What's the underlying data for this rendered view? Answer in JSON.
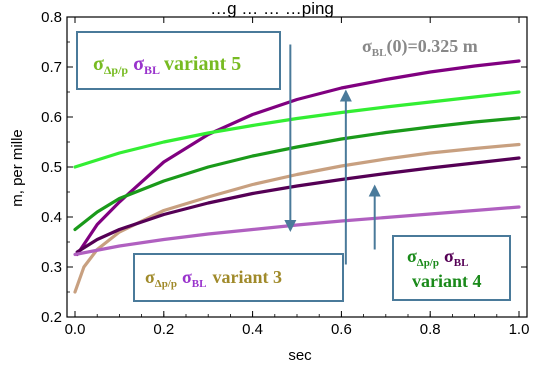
{
  "chart_data": {
    "type": "line",
    "title": "…g … … …ping",
    "xlabel": "sec",
    "ylabel": "m, per mille",
    "xlim": [
      0,
      1
    ],
    "ylim": [
      0.2,
      0.8
    ],
    "xticks": [
      "0.0",
      "0.2",
      "0.4",
      "0.6",
      "0.8",
      "1.0"
    ],
    "yticks": [
      "0.2",
      "0.3",
      "0.4",
      "0.5",
      "0.6",
      "0.7",
      "0.8"
    ],
    "grid": false,
    "series": [
      {
        "color": "#800080",
        "x": [
          0.005,
          0.05,
          0.1,
          0.2,
          0.3,
          0.4,
          0.5,
          0.6,
          0.7,
          0.8,
          0.9,
          1.0
        ],
        "y": [
          0.325,
          0.385,
          0.43,
          0.51,
          0.565,
          0.605,
          0.635,
          0.658,
          0.675,
          0.69,
          0.702,
          0.712
        ]
      },
      {
        "color": "#33ee33",
        "x": [
          0.0,
          0.1,
          0.2,
          0.3,
          0.4,
          0.5,
          0.6,
          0.7,
          0.8,
          0.9,
          1.0
        ],
        "y": [
          0.5,
          0.528,
          0.55,
          0.568,
          0.583,
          0.597,
          0.609,
          0.62,
          0.63,
          0.64,
          0.65
        ]
      },
      {
        "color": "#1a9a1a",
        "x": [
          0.0,
          0.05,
          0.1,
          0.2,
          0.3,
          0.4,
          0.5,
          0.6,
          0.7,
          0.8,
          0.9,
          1.0
        ],
        "y": [
          0.375,
          0.41,
          0.437,
          0.472,
          0.5,
          0.522,
          0.54,
          0.556,
          0.569,
          0.58,
          0.59,
          0.598
        ]
      },
      {
        "color": "#c8a080",
        "x": [
          0.0,
          0.02,
          0.05,
          0.1,
          0.2,
          0.3,
          0.4,
          0.5,
          0.6,
          0.7,
          0.8,
          0.9,
          1.0
        ],
        "y": [
          0.25,
          0.3,
          0.335,
          0.37,
          0.413,
          0.44,
          0.465,
          0.485,
          0.502,
          0.516,
          0.528,
          0.537,
          0.545
        ]
      },
      {
        "color": "#550055",
        "x": [
          0.005,
          0.05,
          0.1,
          0.2,
          0.3,
          0.4,
          0.5,
          0.6,
          0.7,
          0.8,
          0.9,
          1.0
        ],
        "y": [
          0.33,
          0.355,
          0.375,
          0.405,
          0.428,
          0.447,
          0.462,
          0.475,
          0.487,
          0.498,
          0.508,
          0.518
        ]
      },
      {
        "color": "#b060c0",
        "x": [
          0.0,
          0.1,
          0.2,
          0.3,
          0.4,
          0.5,
          0.6,
          0.7,
          0.8,
          0.9,
          1.0
        ],
        "y": [
          0.325,
          0.342,
          0.355,
          0.366,
          0.375,
          0.384,
          0.392,
          0.399,
          0.406,
          0.413,
          0.42
        ]
      }
    ],
    "arrows": [
      {
        "x": 0.485,
        "y_from": 0.745,
        "y_to": 0.37
      },
      {
        "x": 0.61,
        "y_from": 0.305,
        "y_to": 0.655
      },
      {
        "x": 0.675,
        "y_from": 0.335,
        "y_to": 0.465
      }
    ],
    "annotations": {
      "sigma_label": "σBL(0)=0.325 m",
      "variant5_text": "variant 5",
      "variant3_text": "variant 3",
      "variant4_text": "variant 4",
      "sigma_dp": "σ",
      "sub_dp": "Δp/p",
      "sigma_bl": "σ",
      "sub_bl": "BL",
      "sigma0_main": "σ",
      "sigma0_sub": "BL",
      "sigma0_rest": "(0)=0.325 m"
    },
    "colors": {
      "box_border": "#4a7a9a",
      "arrow": "#4a7a9a",
      "text_olive": "#a08a2a",
      "text_purple": "#9933cc",
      "text_green_light": "#77bb22",
      "text_green": "#1a8a1a",
      "text_dark_purple": "#550055",
      "text_gray": "#888888"
    }
  }
}
